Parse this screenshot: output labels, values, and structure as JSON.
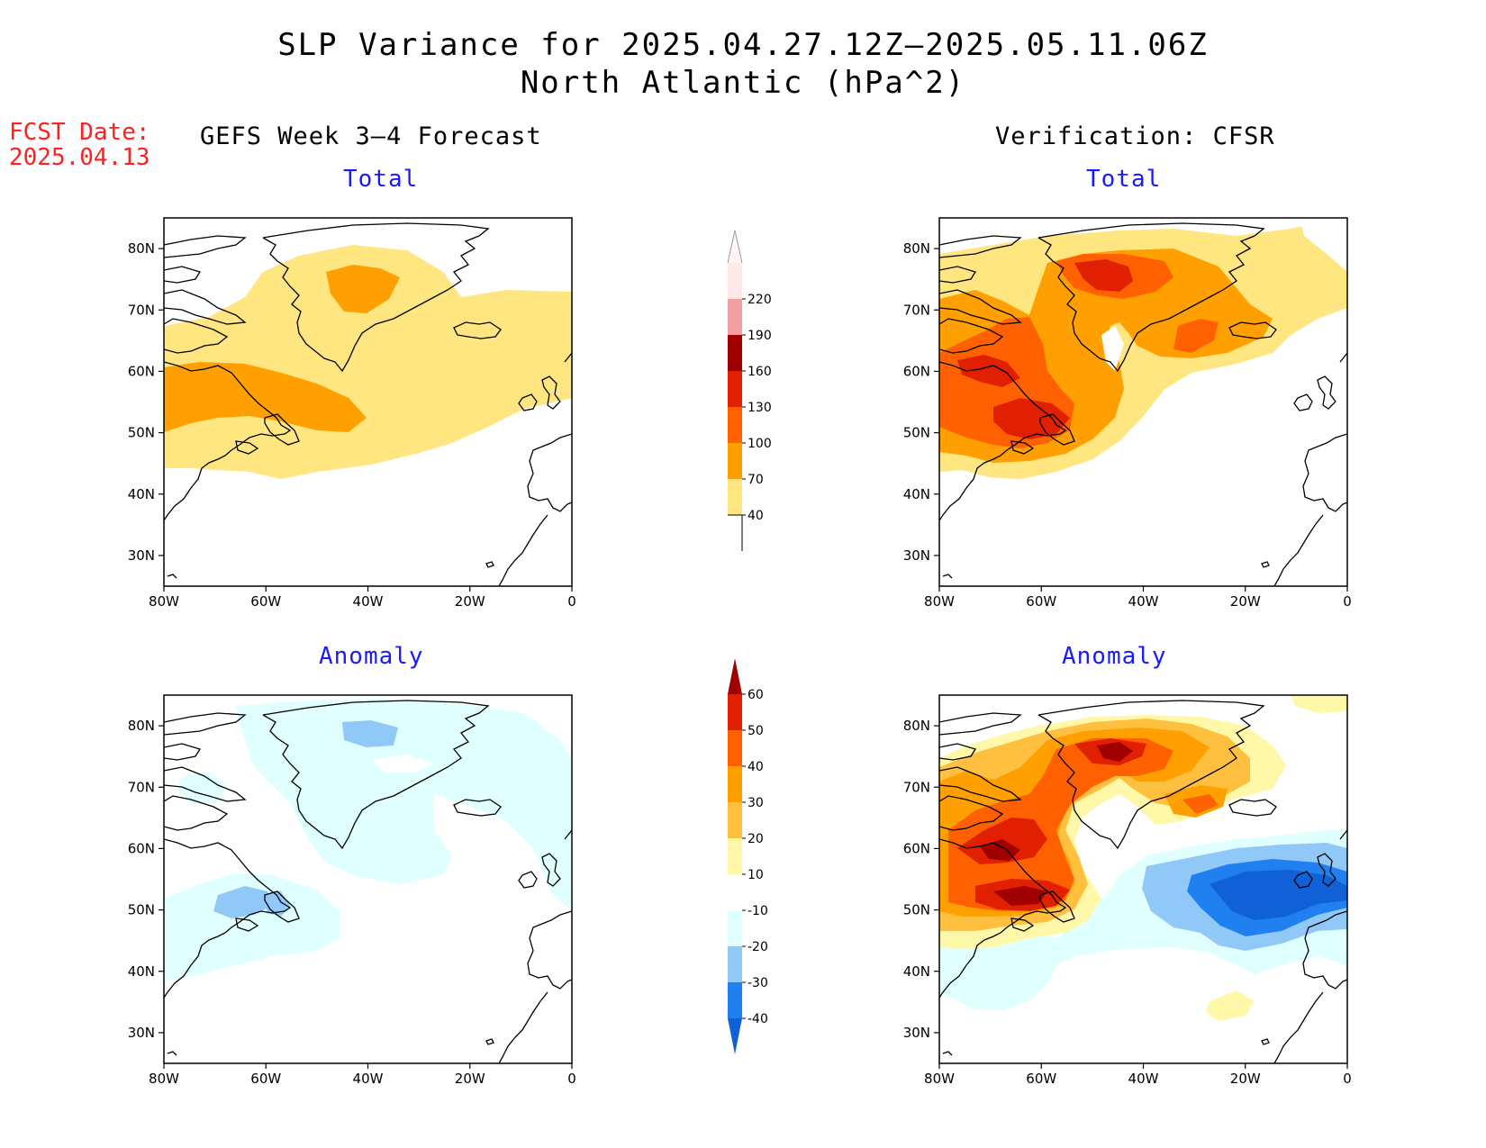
{
  "title": {
    "line1": "SLP Variance for 2025.04.27.12Z–2025.05.11.06Z",
    "line2": "North Atlantic (hPa^2)"
  },
  "fcst": {
    "label": "FCST Date:",
    "date": "2025.04.13"
  },
  "columns": {
    "left": "GEFS Week 3–4 Forecast",
    "right": "Verification: CFSR"
  },
  "panels": {
    "total_label": "Total",
    "anomaly_label": "Anomaly"
  },
  "map_axes": {
    "lon_labels": [
      "80W",
      "60W",
      "40W",
      "20W",
      "0"
    ],
    "lat_labels": [
      "80N",
      "70N",
      "60N",
      "50N",
      "40N",
      "30N"
    ],
    "lon_range": [
      -80,
      0
    ],
    "lat_range": [
      25,
      85
    ]
  },
  "colorbars": {
    "total": {
      "levels": [
        "40",
        "70",
        "100",
        "130",
        "160",
        "190",
        "220"
      ],
      "colors": [
        "#ffe680",
        "#ffa000",
        "#ff6000",
        "#e02000",
        "#a00000",
        "#f0a0a0",
        "#ffe8e8"
      ]
    },
    "anomaly": {
      "levels": [
        "-40",
        "-30",
        "-20",
        "-10",
        "10",
        "20",
        "30",
        "40",
        "50",
        "60"
      ],
      "colors": [
        "#1060d8",
        "#2080f0",
        "#90c8f8",
        "#e0ffff",
        "#ffffff",
        "#fff8a8",
        "#ffc040",
        "#ffa000",
        "#ff6000",
        "#e02000",
        "#a00000"
      ]
    }
  }
}
